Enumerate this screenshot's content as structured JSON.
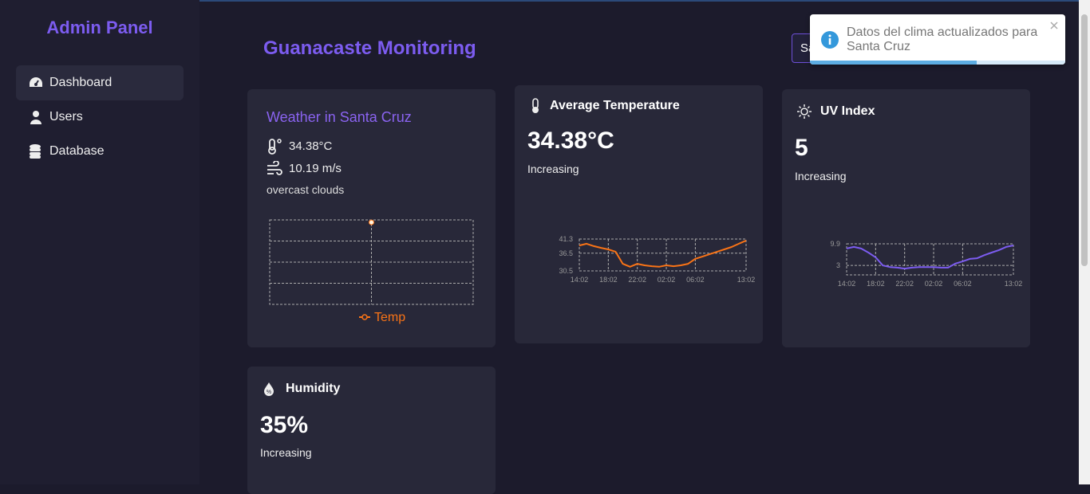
{
  "sidebar": {
    "title": "Admin Panel",
    "nav": [
      "Dashboard",
      "Users",
      "Database"
    ]
  },
  "header": {
    "title": "Guanacaste Monitoring",
    "location_select": "Santa Cruz"
  },
  "toast": {
    "message": "Datos del clima actualizados para Santa Cruz"
  },
  "weather_card": {
    "title": "Weather in Santa Cruz",
    "temperature": "34.38°C",
    "wind_speed": "10.19 m/s",
    "description": "overcast clouds",
    "chart": {
      "type": "line",
      "series": [
        {
          "name": "Temp",
          "color": "#f97316",
          "values": [
            34.38
          ]
        }
      ],
      "ylim": [
        30.38,
        34.5
      ]
    }
  },
  "metric_cards": [
    {
      "title": "Average Temperature",
      "value": "34.38°C",
      "trend": "Increasing",
      "chart": {
        "type": "line",
        "color": "#f97316",
        "categories": [
          "14:02",
          null,
          null,
          null,
          "18:02",
          null,
          null,
          null,
          "22:02",
          null,
          null,
          null,
          "02:02",
          null,
          null,
          null,
          "06:02",
          null,
          null,
          null,
          null,
          null,
          null,
          "13:02"
        ],
        "values": [
          39.1,
          39.7,
          38.9,
          38.3,
          37.8,
          37.0,
          32.9,
          31.9,
          32.9,
          32.4,
          32.1,
          31.9,
          32.4,
          32.1,
          32.4,
          32.9,
          34.6,
          35.4,
          36.2,
          37.0,
          37.8,
          38.6,
          39.7,
          40.8
        ],
        "ylim": [
          30.5,
          41.3
        ],
        "yticks": [
          30.5,
          36.5,
          41.3
        ]
      }
    },
    {
      "title": "UV Index",
      "value": "5",
      "trend": "Increasing",
      "chart": {
        "type": "line",
        "color": "#7c5cf0",
        "categories": [
          "14:02",
          null,
          null,
          null,
          "18:02",
          null,
          null,
          null,
          "22:02",
          null,
          null,
          null,
          "02:02",
          null,
          null,
          null,
          "06:02",
          null,
          null,
          null,
          null,
          null,
          null,
          "13:02"
        ],
        "values": [
          8.4,
          8.9,
          8.4,
          7.1,
          5.6,
          3.0,
          2.5,
          2.3,
          2.0,
          2.3,
          2.5,
          2.5,
          2.5,
          2.3,
          2.3,
          3.6,
          4.3,
          5.1,
          5.3,
          6.3,
          7.1,
          7.9,
          8.9,
          9.4
        ],
        "ylim": [
          0,
          9.9
        ],
        "yticks": [
          3,
          9.9
        ]
      }
    },
    {
      "title": "Humidity",
      "value": "35%",
      "trend": "Increasing"
    }
  ]
}
